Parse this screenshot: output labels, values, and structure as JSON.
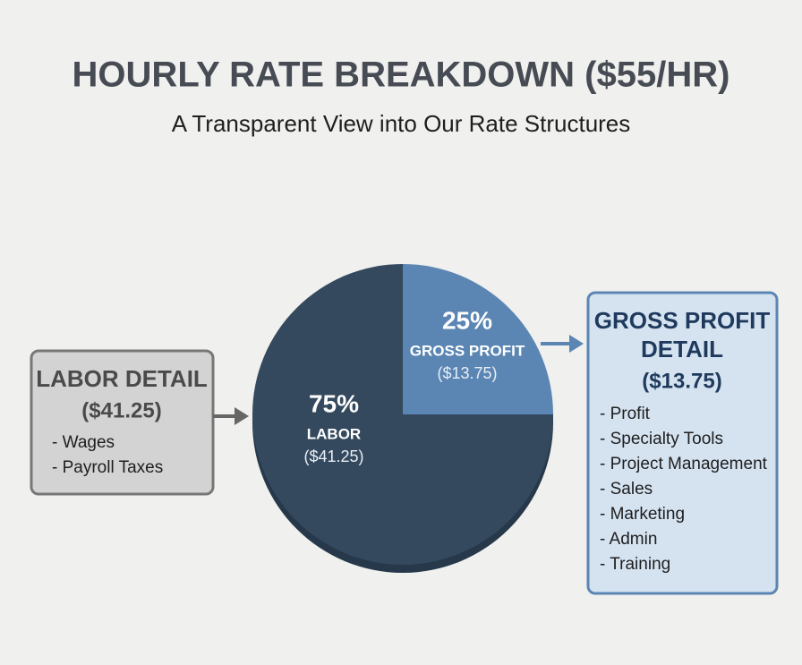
{
  "chart_data": {
    "type": "pie",
    "title": "HOURLY RATE BREAKDOWN ($55/HR)",
    "subtitle": "A Transparent View into Our Rate Structures",
    "categories": [
      "LABOR",
      "GROSS PROFIT"
    ],
    "values": [
      75,
      25
    ],
    "value_labels": [
      "75%",
      "25%"
    ],
    "amounts": [
      "($41.25)",
      "($13.75)"
    ],
    "colors": [
      "#34495e",
      "#5b86b3"
    ]
  },
  "details": [
    {
      "title_lines": [
        "LABOR DETAIL"
      ],
      "amount": "($41.25)",
      "items": [
        "- Wages",
        "- Payroll Taxes"
      ]
    },
    {
      "title_lines": [
        "GROSS PROFIT",
        "DETAIL"
      ],
      "amount": "($13.75)",
      "items": [
        "- Profit",
        "- Specialty Tools",
        "- Project Management",
        "- Sales",
        "- Marketing",
        "- Admin",
        "- Training"
      ]
    }
  ]
}
